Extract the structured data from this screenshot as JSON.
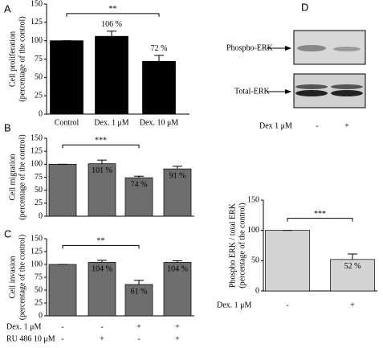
{
  "chart_data": [
    {
      "type": "bar",
      "panel": "A",
      "ylabel": [
        "Cell proliferation",
        "(percentage of the control)"
      ],
      "categories": [
        "Control",
        "Dex. 1 μM",
        "Dex. 10 μM"
      ],
      "values": [
        100,
        106,
        72
      ],
      "errors": [
        0,
        7,
        8
      ],
      "value_labels": [
        null,
        "106 %",
        "72 %"
      ],
      "significance": "**",
      "color": "#000000",
      "ylim": [
        0,
        150
      ],
      "yticks": [
        0,
        25,
        50,
        75,
        100,
        125,
        150
      ]
    },
    {
      "type": "bar",
      "panel": "B",
      "ylabel": [
        "Cell migration",
        "(percentage of the control)"
      ],
      "values": [
        100,
        101,
        74,
        91
      ],
      "errors": [
        0,
        7,
        3,
        5
      ],
      "value_labels": [
        null,
        "101 %",
        "74 %",
        "91 %"
      ],
      "significance": "***",
      "color": "#6e6e6e",
      "ylim": [
        0,
        150
      ],
      "yticks": [
        0,
        25,
        50,
        75,
        100,
        125,
        150
      ]
    },
    {
      "type": "bar",
      "panel": "C",
      "ylabel": [
        "Cell invasion",
        "(percentage of the control)"
      ],
      "values": [
        100,
        104,
        61,
        104
      ],
      "errors": [
        0,
        4,
        8,
        3
      ],
      "value_labels": [
        null,
        "104 %",
        "61 %",
        "104 %"
      ],
      "significance": "**",
      "color": "#6e6e6e",
      "ylim": [
        0,
        150
      ],
      "yticks": [
        0,
        25,
        50,
        75,
        100,
        125,
        150
      ],
      "conditions": [
        {
          "label": "Dex. 1 μM",
          "signs": [
            "-",
            "-",
            "+",
            "+"
          ]
        },
        {
          "label": "RU 486 10 μM",
          "signs": [
            "-",
            "+",
            "-",
            "+"
          ]
        }
      ]
    },
    {
      "type": "bar",
      "panel": "D",
      "ylabel": [
        "Phospho ERK / total ERK",
        "(percentage of the control)"
      ],
      "xlabel": "Dex. 1 μM",
      "categories": [
        "-",
        "+"
      ],
      "values": [
        100,
        52
      ],
      "errors": [
        0,
        9
      ],
      "value_labels": [
        null,
        "52 %"
      ],
      "significance": "***",
      "color": "#d4d4d4",
      "ylim": [
        0,
        150
      ],
      "yticks": [
        0,
        50,
        100,
        150
      ],
      "blot": {
        "bands": [
          "Phospho-ERK",
          "Total-ERK"
        ],
        "treatment": "Dex 1 μM",
        "lanes": [
          "-",
          "+"
        ]
      }
    }
  ]
}
